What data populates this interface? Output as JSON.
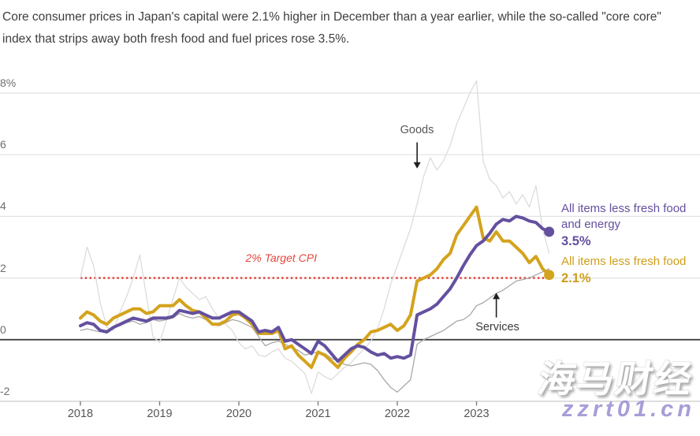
{
  "title": "Core consumer prices in Japan's capital were 2.1% higher in December than a year earlier, while the so-called \"core core\" index that strips away both fresh food and fuel prices rose 3.5%.",
  "legend": {
    "core_core": {
      "label": "All items less fresh food and energy",
      "value": "3.5%",
      "color": "#64509f"
    },
    "core": {
      "label": "All items less fresh food",
      "value": "2.1%",
      "color": "#cf9d1b"
    }
  },
  "watermark": {
    "cn": "海马财经",
    "url": "zzrt01.cn"
  },
  "chart_data": {
    "type": "line",
    "unit": "% change year-on-year",
    "frequency": "monthly",
    "x_range": [
      "2018-01",
      "2023-12"
    ],
    "x_axis": {
      "labels": [
        "2018",
        "2019",
        "2020",
        "2021",
        "2022",
        "2023"
      ]
    },
    "y_axis": {
      "ticks": [
        {
          "label": "8%",
          "value": 8
        },
        {
          "label": "6",
          "value": 6
        },
        {
          "label": "4",
          "value": 4
        },
        {
          "label": "2",
          "value": 2
        },
        {
          "label": "0",
          "value": 0
        },
        {
          "label": "-2",
          "value": -2
        }
      ],
      "ylim": [
        -2,
        8.5
      ],
      "grid": true
    },
    "target": {
      "label": "2% Target CPI",
      "value": 2,
      "color": "#e5473c"
    },
    "annotations": [
      {
        "label": "Goods",
        "month": 51,
        "tail_value": 6.4,
        "head_value": 5.55,
        "direction": "down"
      },
      {
        "label": "Services",
        "month": 63,
        "tail_value": 0.72,
        "head_value": 1.52,
        "direction": "up"
      }
    ],
    "series": [
      {
        "name": "Goods",
        "color": "#dcdcdc",
        "width": 1.3,
        "end_dot": false,
        "values": [
          2.0,
          3.0,
          2.4,
          1.2,
          0.4,
          0.3,
          0.9,
          1.4,
          2.0,
          2.75,
          1.4,
          0.1,
          -0.1,
          0.6,
          1.3,
          2.0,
          1.7,
          1.5,
          1.3,
          1.4,
          1.0,
          0.7,
          0.5,
          0.3,
          -0.1,
          -0.3,
          -0.2,
          -0.5,
          -0.55,
          -0.4,
          -0.3,
          -0.6,
          -0.7,
          -0.9,
          -1.1,
          -1.75,
          -1.05,
          -1.2,
          -1.3,
          -1.1,
          -0.9,
          -0.75,
          -0.5,
          -0.3,
          -0.05,
          0.35,
          1.0,
          1.8,
          2.4,
          3.0,
          3.6,
          4.4,
          5.3,
          5.9,
          5.5,
          5.8,
          6.3,
          7.0,
          7.5,
          8.0,
          8.4,
          5.8,
          5.2,
          5.0,
          4.6,
          4.8,
          4.4,
          4.7,
          4.3,
          5.0,
          3.6,
          2.8
        ]
      },
      {
        "name": "Services",
        "color": "#a8a8a8",
        "width": 1.3,
        "end_dot": false,
        "values": [
          0.3,
          0.35,
          0.3,
          0.25,
          0.3,
          0.4,
          0.45,
          0.55,
          0.6,
          0.5,
          0.55,
          0.65,
          0.6,
          0.65,
          0.7,
          0.85,
          0.75,
          0.7,
          0.75,
          0.65,
          0.5,
          0.45,
          0.55,
          0.65,
          0.6,
          0.5,
          0.4,
          0.1,
          -0.2,
          -0.1,
          -0.05,
          -0.15,
          -0.25,
          -0.35,
          -0.5,
          -0.45,
          -0.4,
          -0.45,
          -0.6,
          -0.7,
          -0.8,
          -0.85,
          -0.8,
          -0.75,
          -0.8,
          -1.0,
          -1.3,
          -1.55,
          -1.7,
          -1.5,
          -1.3,
          -0.15,
          0.0,
          0.1,
          0.2,
          0.3,
          0.45,
          0.6,
          0.65,
          0.8,
          1.1,
          1.2,
          1.35,
          1.5,
          1.6,
          1.75,
          1.9,
          1.95,
          2.0,
          2.1,
          2.2,
          2.3
        ]
      },
      {
        "name": "All items less fresh food",
        "color": "#d4a31d",
        "width": 4,
        "end_dot": true,
        "values": [
          0.7,
          0.9,
          0.8,
          0.6,
          0.5,
          0.7,
          0.8,
          0.9,
          1.0,
          1.0,
          0.85,
          0.9,
          1.1,
          1.1,
          1.1,
          1.3,
          1.1,
          0.95,
          0.9,
          0.7,
          0.5,
          0.5,
          0.6,
          0.8,
          0.85,
          0.7,
          0.5,
          0.2,
          0.2,
          0.2,
          0.3,
          -0.3,
          -0.2,
          -0.5,
          -0.7,
          -0.9,
          -0.4,
          -0.5,
          -0.7,
          -0.9,
          -0.6,
          -0.4,
          -0.15,
          0.0,
          0.25,
          0.3,
          0.4,
          0.5,
          0.3,
          0.45,
          0.8,
          1.9,
          2.0,
          2.1,
          2.3,
          2.6,
          2.8,
          3.4,
          3.7,
          4.0,
          4.3,
          3.3,
          3.2,
          3.5,
          3.2,
          3.2,
          3.0,
          2.8,
          2.5,
          2.7,
          2.3,
          2.1
        ]
      },
      {
        "name": "All items less fresh food and energy",
        "color": "#64509f",
        "width": 4,
        "end_dot": true,
        "values": [
          0.45,
          0.55,
          0.5,
          0.3,
          0.25,
          0.4,
          0.5,
          0.6,
          0.7,
          0.65,
          0.6,
          0.7,
          0.7,
          0.7,
          0.75,
          0.95,
          0.9,
          0.85,
          0.9,
          0.8,
          0.7,
          0.7,
          0.8,
          0.9,
          0.9,
          0.75,
          0.6,
          0.25,
          0.3,
          0.25,
          0.4,
          -0.05,
          0.0,
          -0.15,
          -0.3,
          -0.45,
          -0.05,
          -0.2,
          -0.45,
          -0.7,
          -0.5,
          -0.3,
          -0.2,
          -0.25,
          -0.4,
          -0.5,
          -0.45,
          -0.6,
          -0.55,
          -0.6,
          -0.5,
          0.8,
          0.9,
          1.0,
          1.15,
          1.4,
          1.65,
          2.0,
          2.4,
          2.75,
          3.05,
          3.2,
          3.45,
          3.75,
          3.9,
          3.85,
          4.0,
          3.95,
          3.85,
          3.8,
          3.6,
          3.5
        ]
      }
    ]
  }
}
